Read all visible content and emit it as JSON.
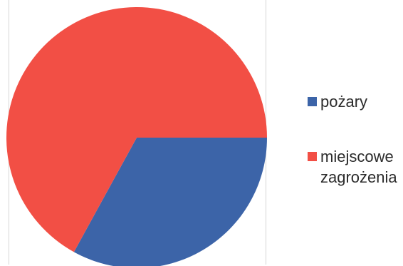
{
  "chart_data": {
    "type": "pie",
    "categories": [
      "pożary",
      "miejscowe zagrożenia"
    ],
    "values": [
      33,
      67
    ],
    "colors": [
      "#3c64a8",
      "#f24f45"
    ],
    "title": "",
    "legend_position": "right"
  }
}
